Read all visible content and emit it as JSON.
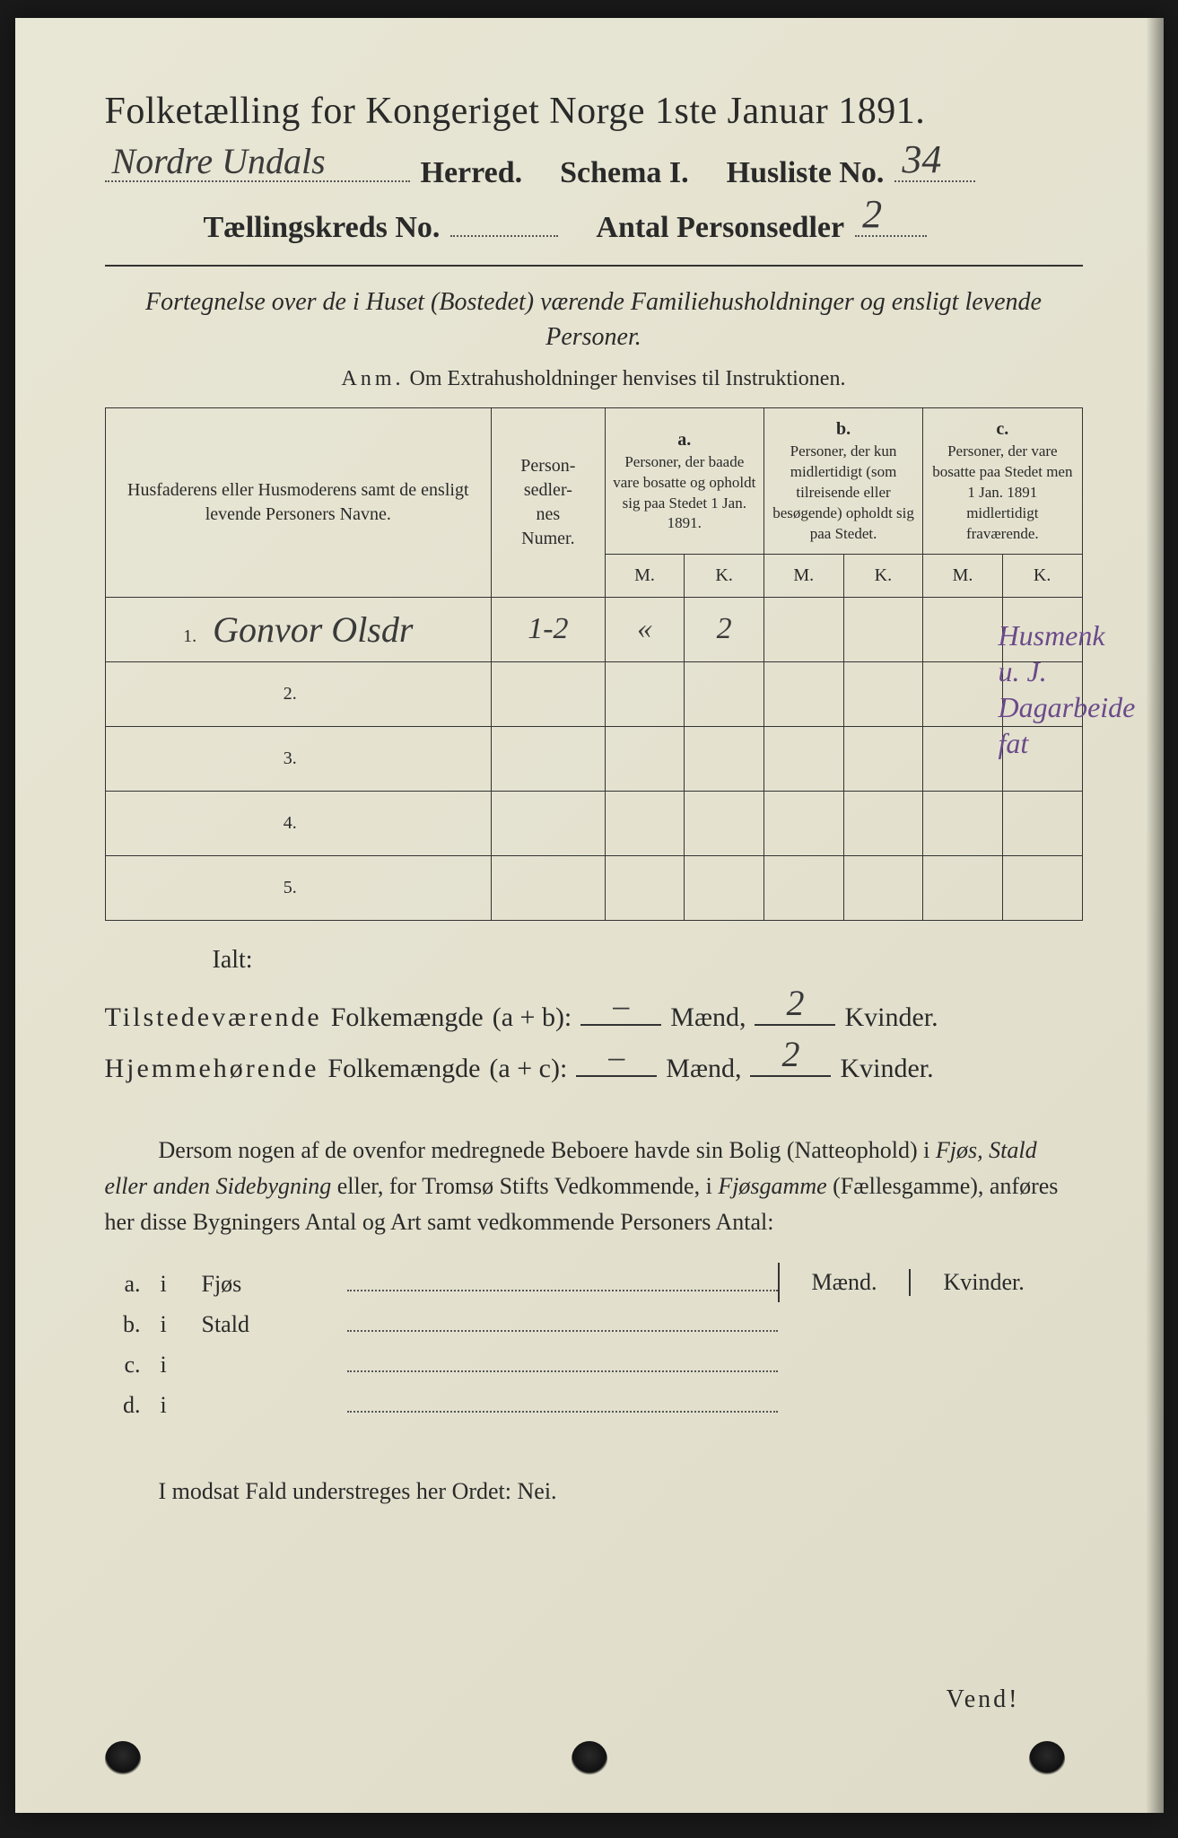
{
  "colors": {
    "page_bg": "#e4e2cf",
    "ink": "#2a2a2a",
    "handwriting": "#3a3a3a",
    "purple_ink": "#6b4a8a",
    "border": "#333333"
  },
  "header": {
    "title": "Folketælling for Kongeriget Norge 1ste Januar 1891.",
    "herred_written": "Nordre Undals",
    "herred_label": "Herred.",
    "schema_label": "Schema I.",
    "husliste_label": "Husliste No.",
    "husliste_no": "34",
    "kreds_label": "Tællingskreds No.",
    "kreds_no": "",
    "antal_label": "Antal Personsedler",
    "antal_val": "2"
  },
  "subtitle": "Fortegnelse over de i Huset (Bostedet) værende Familiehusholdninger og ensligt levende Personer.",
  "anm": {
    "prefix": "Anm.",
    "text": "Om Extrahusholdninger henvises til Instruktionen."
  },
  "table": {
    "col_name": "Husfaderens eller Husmoderens samt de ensligt levende Personers Navne.",
    "col_num": "Person-\nsedler-\nnes\nNumer.",
    "col_a_label": "a.",
    "col_a": "Personer, der baade vare bosatte og opholdt sig paa Stedet 1 Jan. 1891.",
    "col_b_label": "b.",
    "col_b": "Personer, der kun midlertidigt (som tilreisende eller besøgende) opholdt sig paa Stedet.",
    "col_c_label": "c.",
    "col_c": "Personer, der vare bosatte paa Stedet men 1 Jan. 1891 midlertidigt fraværende.",
    "mk_m": "M.",
    "mk_k": "K.",
    "rows": [
      {
        "n": "1.",
        "name": "Gonvor Olsdr",
        "num": "1-2",
        "a_m": "«",
        "a_k": "2",
        "b_m": "",
        "b_k": "",
        "c_m": "",
        "c_k": ""
      },
      {
        "n": "2.",
        "name": "",
        "num": "",
        "a_m": "",
        "a_k": "",
        "b_m": "",
        "b_k": "",
        "c_m": "",
        "c_k": ""
      },
      {
        "n": "3.",
        "name": "",
        "num": "",
        "a_m": "",
        "a_k": "",
        "b_m": "",
        "b_k": "",
        "c_m": "",
        "c_k": ""
      },
      {
        "n": "4.",
        "name": "",
        "num": "",
        "a_m": "",
        "a_k": "",
        "b_m": "",
        "b_k": "",
        "c_m": "",
        "c_k": ""
      },
      {
        "n": "5.",
        "name": "",
        "num": "",
        "a_m": "",
        "a_k": "",
        "b_m": "",
        "b_k": "",
        "c_m": "",
        "c_k": ""
      }
    ]
  },
  "margin_note": "Husmenk\nu. J.\nDagarbeide\nfat",
  "totals": {
    "ialt": "Ialt:",
    "line1_label": "Tilstedeværende",
    "folkemaengde": "Folkemængde",
    "line1_expr": "(a + b):",
    "line2_label": "Hjemmehørende",
    "line2_expr": "(a + c):",
    "maend": "Mænd,",
    "kvinder": "Kvinder.",
    "line1_m": "–",
    "line1_k": "2",
    "line2_m": "–",
    "line2_k": "2"
  },
  "paragraph": "Dersom nogen af de ovenfor medregnede Beboere havde sin Bolig (Natteophold) i Fjøs, Stald eller anden Sidebygning eller, for Tromsø Stifts Vedkommende, i Fjøsgamme (Fællesgamme), anføres her disse Bygningers Antal og Art samt vedkommende Personers Antal:",
  "side_buildings": {
    "header_m": "Mænd.",
    "header_k": "Kvinder.",
    "rows": [
      {
        "label": "a.",
        "i": "i",
        "name": "Fjøs"
      },
      {
        "label": "b.",
        "i": "i",
        "name": "Stald"
      },
      {
        "label": "c.",
        "i": "i",
        "name": ""
      },
      {
        "label": "d.",
        "i": "i",
        "name": ""
      }
    ]
  },
  "modsat": "I modsat Fald understreges her Ordet: Nei.",
  "vend": "Vend!"
}
